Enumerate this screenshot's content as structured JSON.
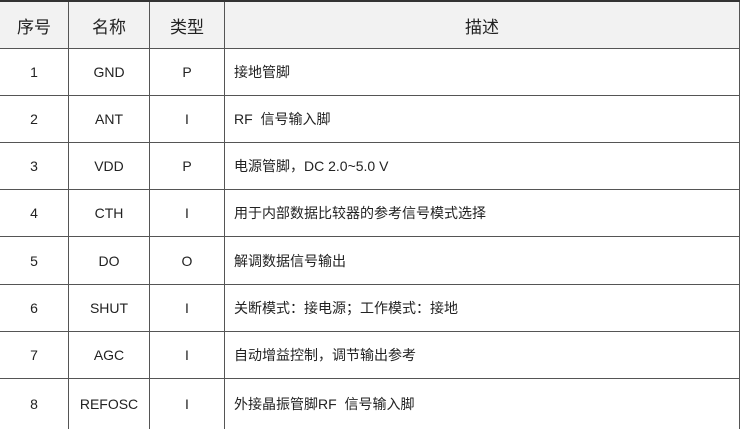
{
  "table": {
    "headers": [
      "序号",
      "名称",
      "类型",
      "描述"
    ],
    "rows": [
      [
        "1",
        "GND",
        "P",
        "接地管脚"
      ],
      [
        "2",
        "ANT",
        "I",
        "RF  信号输入脚"
      ],
      [
        "3",
        "VDD",
        "P",
        "电源管脚，DC 2.0~5.0 V"
      ],
      [
        "4",
        "CTH",
        "I",
        "用于内部数据比较器的参考信号模式选择"
      ],
      [
        "5",
        "DO",
        "O",
        "解调数据信号输出"
      ],
      [
        "6",
        "SHUT",
        "I",
        "关断模式：接电源；工作模式：接地"
      ],
      [
        "7",
        "AGC",
        "I",
        "自动增益控制，调节输出参考"
      ],
      [
        "8",
        "REFOSC",
        "I",
        "外接晶振管脚RF  信号输入脚"
      ]
    ]
  }
}
